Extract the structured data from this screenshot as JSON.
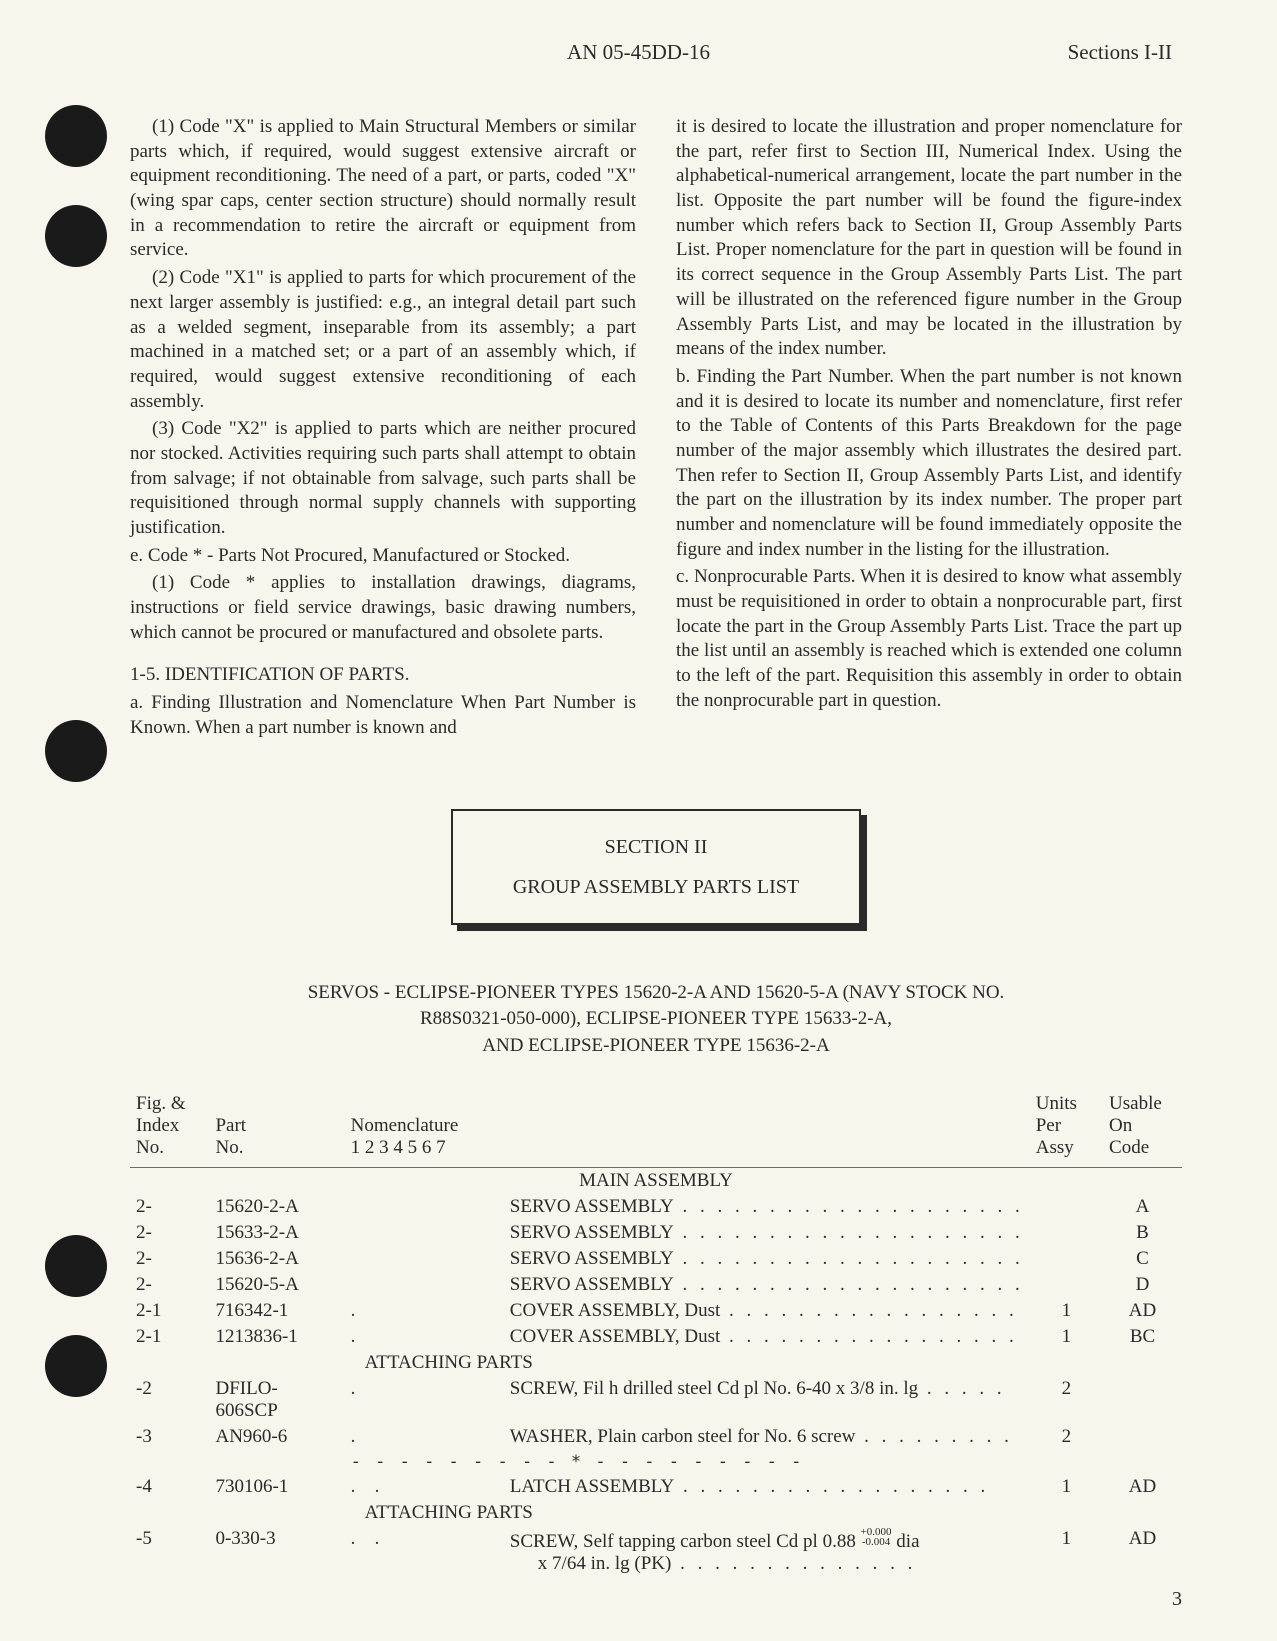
{
  "header": {
    "doc_id": "AN 05-45DD-16",
    "sections": "Sections I-II"
  },
  "left_col": {
    "p1": "(1) Code \"X\" is applied to Main Structural Members or similar parts which, if required, would suggest extensive aircraft or equipment reconditioning. The need of a part, or parts, coded \"X\" (wing spar caps, center section structure) should normally result in a recommendation to retire the aircraft or equipment from service.",
    "p2": "(2) Code \"X1\" is applied to parts for which procurement of the next larger assembly is justified: e.g., an integral detail part such as a welded segment, inseparable from its assembly; a part machined in a matched set; or a part of an assembly which, if required, would suggest extensive reconditioning of each assembly.",
    "p3": "(3) Code \"X2\" is applied to parts which are neither procured nor stocked. Activities requiring such parts shall attempt to obtain from salvage; if not obtainable from salvage, such parts shall be requisitioned through normal supply channels with supporting justification.",
    "p4": "e. Code * - Parts Not Procured, Manufactured or Stocked.",
    "p5": "(1) Code * applies to installation drawings, diagrams, instructions or field service drawings, basic drawing numbers, which cannot be procured or manufactured and obsolete parts.",
    "h1": "1-5. IDENTIFICATION OF PARTS.",
    "p6": "a. Finding Illustration and Nomenclature When Part Number is Known. When a part number is known and"
  },
  "right_col": {
    "p1": "it is desired to locate the illustration and proper nomenclature for the part, refer first to Section III, Numerical Index. Using the alphabetical-numerical arrangement, locate the part number in the list. Opposite the part number will be found the figure-index number which refers back to Section II, Group Assembly Parts List. Proper nomenclature for the part in question will be found in its correct sequence in the Group Assembly Parts List. The part will be illustrated on the referenced figure number in the Group Assembly Parts List, and may be located in the illustration by means of the index number.",
    "p2": "b. Finding the Part Number. When the part number is not known and it is desired to locate its number and nomenclature, first refer to the Table of Contents of this Parts Breakdown for the page number of the major assembly which illustrates the desired part. Then refer to Section II, Group Assembly Parts List, and identify the part on the illustration by its index number. The proper part number and nomenclature will be found immediately opposite the figure and index number in the listing for the illustration.",
    "p3": "c. Nonprocurable Parts. When it is desired to know what assembly must be requisitioned in order to obtain a nonprocurable part, first locate the part in the Group Assembly Parts List. Trace the part up the list until an assembly is reached which is extended one column to the left of the part. Requisition this assembly in order to obtain the nonprocurable part in question."
  },
  "section_box": {
    "line1": "SECTION II",
    "line2": "GROUP ASSEMBLY PARTS LIST"
  },
  "servos_title": {
    "line1": "SERVOS - ECLIPSE-PIONEER TYPES 15620-2-A AND 15620-5-A (NAVY STOCK NO.",
    "line2": "R88S0321-050-000), ECLIPSE-PIONEER TYPE 15633-2-A,",
    "line3": "AND ECLIPSE-PIONEER TYPE 15636-2-A"
  },
  "table": {
    "headers": {
      "fig1": "Fig. &",
      "fig2": "Index",
      "fig3": "No.",
      "part1": "Part",
      "part2": "No.",
      "indent_nums": "1  2  3  4  5  6  7",
      "nom": "Nomenclature",
      "units1": "Units",
      "units2": "Per",
      "units3": "Assy",
      "code1": "Usable",
      "code2": "On",
      "code3": "Code"
    },
    "main_assembly": "MAIN ASSEMBLY",
    "attaching": "ATTACHING PARTS",
    "dash_sep": "- - - - - - - - - * - - - - - - - - -",
    "rows": [
      {
        "fig": "2-",
        "part": "15620-2-A",
        "ind": 0,
        "nom": "SERVO ASSEMBLY",
        "units": "",
        "code": "A"
      },
      {
        "fig": "2-",
        "part": "15633-2-A",
        "ind": 0,
        "nom": "SERVO ASSEMBLY",
        "units": "",
        "code": "B"
      },
      {
        "fig": "2-",
        "part": "15636-2-A",
        "ind": 0,
        "nom": "SERVO ASSEMBLY",
        "units": "",
        "code": "C"
      },
      {
        "fig": "2-",
        "part": "15620-5-A",
        "ind": 0,
        "nom": "SERVO ASSEMBLY",
        "units": "",
        "code": "D"
      },
      {
        "fig": "2-1",
        "part": "716342-1",
        "ind": 1,
        "nom": "COVER ASSEMBLY, Dust",
        "units": "1",
        "code": "AD"
      },
      {
        "fig": "2-1",
        "part": "1213836-1",
        "ind": 1,
        "nom": "COVER ASSEMBLY, Dust",
        "units": "1",
        "code": "BC"
      },
      {
        "fig": "-2",
        "part": "DFILO-606SCP",
        "ind": 1,
        "nom": "SCREW, Fil h drilled steel Cd pl No. 6-40 x 3/8 in. lg",
        "units": "2",
        "code": ""
      },
      {
        "fig": "-3",
        "part": "AN960-6",
        "ind": 1,
        "nom": "WASHER, Plain carbon steel for No. 6 screw",
        "units": "2",
        "code": ""
      },
      {
        "fig": "-4",
        "part": "730106-1",
        "ind": 2,
        "nom": "LATCH ASSEMBLY",
        "units": "1",
        "code": "AD"
      },
      {
        "fig": "-5",
        "part": "0-330-3",
        "ind": 2,
        "nom_line1": "SCREW, Self tapping carbon steel Cd pl 0.88",
        "nom_frac_top": "+0.000",
        "nom_frac_bot": "-0.004",
        "nom_line1_end": " dia",
        "nom_line2": "x 7/64 in. lg (PK)",
        "units": "1",
        "code": "AD"
      }
    ]
  },
  "page_number": "3"
}
